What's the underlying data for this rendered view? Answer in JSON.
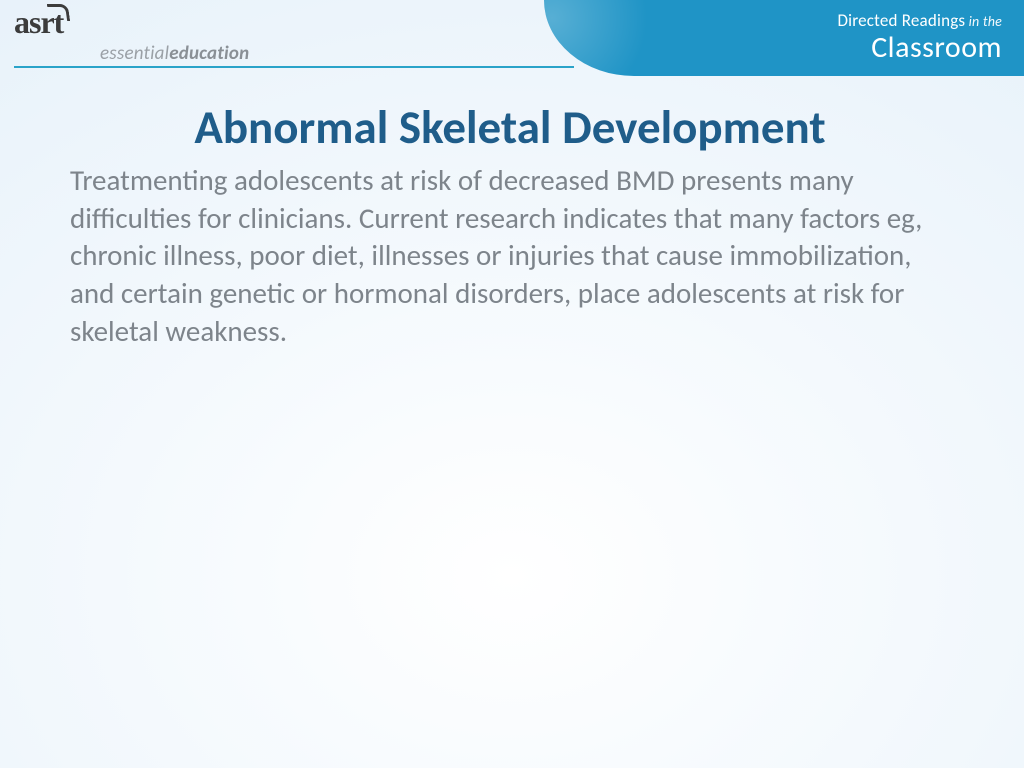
{
  "header": {
    "logo_text": "asrt",
    "tagline_light": "essential",
    "tagline_bold": "education",
    "rule_color": "#2aa3c9"
  },
  "banner": {
    "line1_strong": "Directed Readings",
    "line1_thin": " in the",
    "line2": "Classroom",
    "bg_color": "#1f94c6",
    "text_color": "#ffffff"
  },
  "slide": {
    "title": "Abnormal Skeletal Development",
    "title_color": "#1f5d8a",
    "title_fontsize": 47,
    "body": "Treatmenting adolescents at risk of decreased BMD presents many difficulties for clinicians. Current research indicates that many factors eg, chronic illness, poor diet, illnesses or injuries that cause immobilization, and certain genetic or hormonal disorders, place adolescents at risk for skeletal weakness.",
    "body_color": "#7d848b",
    "body_fontsize": 29
  },
  "background": {
    "gradient_inner": "#ffffff",
    "gradient_outer": "#e8f2fa"
  }
}
